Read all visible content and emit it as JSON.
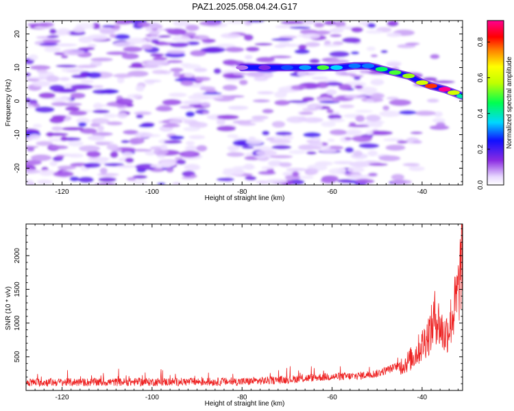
{
  "title": "PAZ1.2025.058.04.24.G17",
  "chart_data": [
    {
      "type": "heatmap",
      "xlabel": "Height of straight line (km)",
      "ylabel": "Frequency (Hz)",
      "xlim": [
        -128,
        -31
      ],
      "ylim": [
        -25,
        24
      ],
      "xticks": [
        -120,
        -100,
        -80,
        -60,
        -40
      ],
      "yticks": [
        -20,
        -10,
        0,
        10,
        20
      ],
      "colorbar": {
        "label": "Normalized spectral amplitude",
        "range": [
          0.0,
          0.92
        ],
        "ticks": [
          0.0,
          0.2,
          0.4,
          0.6,
          0.8
        ]
      },
      "ridge": [
        {
          "x": -80,
          "y": 10,
          "v": 0.1
        },
        {
          "x": -75,
          "y": 10,
          "v": 0.15
        },
        {
          "x": -70,
          "y": 10,
          "v": 0.28
        },
        {
          "x": -66,
          "y": 10,
          "v": 0.32
        },
        {
          "x": -62,
          "y": 10,
          "v": 0.5
        },
        {
          "x": -59,
          "y": 10,
          "v": 0.35
        },
        {
          "x": -55,
          "y": 10.5,
          "v": 0.3
        },
        {
          "x": -52,
          "y": 10.5,
          "v": 0.3
        },
        {
          "x": -49,
          "y": 9.5,
          "v": 0.45
        },
        {
          "x": -46,
          "y": 8.5,
          "v": 0.5
        },
        {
          "x": -43,
          "y": 7.5,
          "v": 0.55
        },
        {
          "x": -40,
          "y": 5.5,
          "v": 0.6
        },
        {
          "x": -38,
          "y": 4.5,
          "v": 0.8
        },
        {
          "x": -35,
          "y": 3.5,
          "v": 0.92
        },
        {
          "x": -33,
          "y": 2.5,
          "v": 0.6
        },
        {
          "x": -31,
          "y": 1.5,
          "v": 0.4
        }
      ]
    },
    {
      "type": "line",
      "xlabel": "Height of straight line (km)",
      "ylabel": "SNR (10 * v/v)",
      "xlim": [
        -128,
        -31
      ],
      "ylim": [
        0,
        2470
      ],
      "xticks": [
        -120,
        -100,
        -80,
        -60,
        -40
      ],
      "yticks": [
        500,
        1000,
        1500,
        2000
      ],
      "color": "#ee2222",
      "envelope": [
        {
          "x": -128,
          "y": 150
        },
        {
          "x": -80,
          "y": 160
        },
        {
          "x": -70,
          "y": 190
        },
        {
          "x": -62,
          "y": 230
        },
        {
          "x": -55,
          "y": 240
        },
        {
          "x": -50,
          "y": 280
        },
        {
          "x": -47,
          "y": 350
        },
        {
          "x": -44,
          "y": 430
        },
        {
          "x": -42,
          "y": 550
        },
        {
          "x": -40,
          "y": 750
        },
        {
          "x": -38,
          "y": 1000
        },
        {
          "x": -37,
          "y": 1250
        },
        {
          "x": -36,
          "y": 1050
        },
        {
          "x": -35,
          "y": 900
        },
        {
          "x": -34,
          "y": 1050
        },
        {
          "x": -33,
          "y": 1300
        },
        {
          "x": -32,
          "y": 1600
        },
        {
          "x": -31,
          "y": 2300
        }
      ]
    }
  ]
}
